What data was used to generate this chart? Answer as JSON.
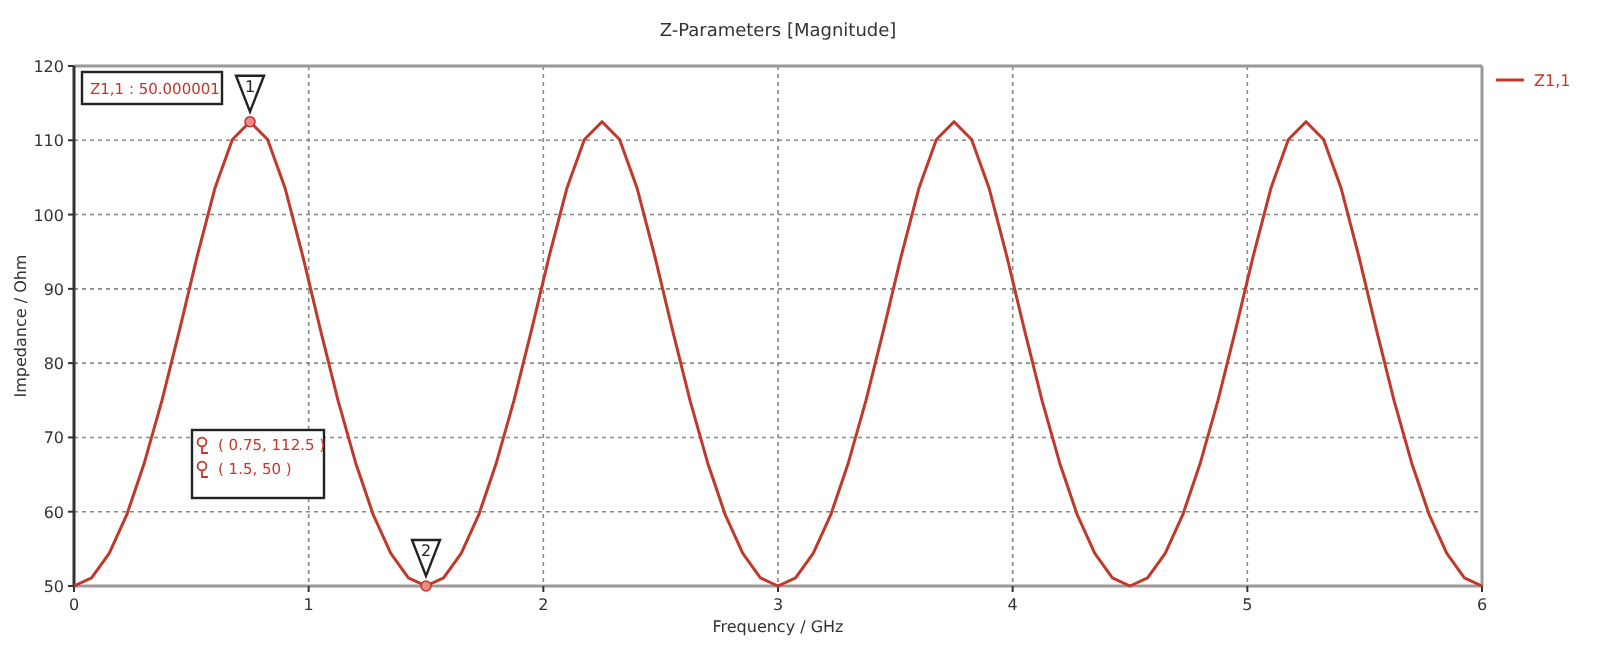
{
  "chart_data": {
    "type": "line",
    "title": "Z-Parameters [Magnitude]",
    "xlabel": "Frequency / GHz",
    "ylabel": "Impedance / Ohm",
    "x": [
      0,
      0.075,
      0.15,
      0.225,
      0.3,
      0.375,
      0.45,
      0.525,
      0.6,
      0.675,
      0.75,
      0.825,
      0.9,
      0.975,
      1.05,
      1.125,
      1.2,
      1.275,
      1.35,
      1.425,
      1.5,
      1.575,
      1.65,
      1.725,
      1.8,
      1.875,
      1.95,
      2.025,
      2.1,
      2.175,
      2.25,
      2.325,
      2.4,
      2.475,
      2.55,
      2.625,
      2.7,
      2.775,
      2.85,
      2.925,
      3,
      3.075,
      3.15,
      3.225,
      3.3,
      3.375,
      3.45,
      3.525,
      3.6,
      3.675,
      3.75,
      3.825,
      3.9,
      3.975,
      4.05,
      4.125,
      4.2,
      4.275,
      4.35,
      4.425,
      4.5,
      4.575,
      4.65,
      4.725,
      4.8,
      4.875,
      4.95,
      5.025,
      5.1,
      5.175,
      5.25,
      5.325,
      5.4,
      5.475,
      5.55,
      5.625,
      5.7,
      5.775,
      5.85,
      5.925,
      6
    ],
    "series": [
      {
        "name": "Z1,1",
        "color": "#c0392b",
        "values": [
          50,
          51.1,
          54.4,
          59.6,
          66.6,
          75,
          84.5,
          94.4,
          103.5,
          110.1,
          112.5,
          110.1,
          103.5,
          94.4,
          84.5,
          75,
          66.6,
          59.6,
          54.4,
          51.1,
          50,
          51.1,
          54.4,
          59.6,
          66.6,
          75,
          84.5,
          94.4,
          103.5,
          110.1,
          112.5,
          110.1,
          103.5,
          94.4,
          84.5,
          75,
          66.6,
          59.6,
          54.4,
          51.1,
          50,
          51.1,
          54.4,
          59.6,
          66.6,
          75,
          84.5,
          94.4,
          103.5,
          110.1,
          112.5,
          110.1,
          103.5,
          94.4,
          84.5,
          75,
          66.6,
          59.6,
          54.4,
          51.1,
          50,
          51.1,
          54.4,
          59.6,
          66.6,
          75,
          84.5,
          94.4,
          103.5,
          110.1,
          112.5,
          110.1,
          103.5,
          94.4,
          84.5,
          75,
          66.6,
          59.6,
          54.4,
          51.1,
          50
        ]
      }
    ],
    "xlim": [
      0,
      6
    ],
    "xticks": [
      0,
      1,
      2,
      3,
      4,
      5,
      6
    ],
    "ylim": [
      50,
      120
    ],
    "yticks": [
      50,
      60,
      70,
      80,
      90,
      100,
      110,
      120
    ],
    "grid": true,
    "legend": "top right",
    "marker": "none",
    "line_style": "solid",
    "annotations": [
      {
        "text": "1",
        "x": 0.75,
        "y": 112.5
      },
      {
        "text": "2",
        "x": 1.5,
        "y": 50
      },
      "Z1,1 : 50.000001",
      "( 0.75, 112.5 )",
      "( 1.5, 50 )"
    ]
  }
}
